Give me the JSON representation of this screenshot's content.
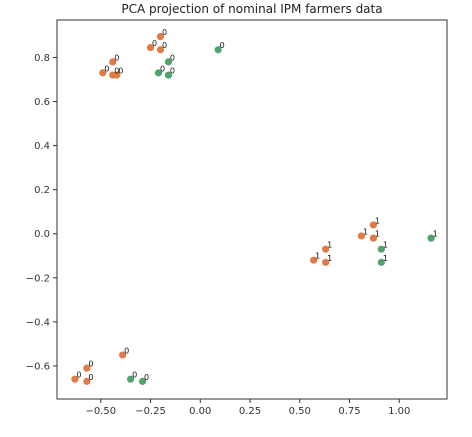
{
  "chart_data": {
    "type": "scatter",
    "title": "PCA projection of nominal IPM farmers data",
    "xlabel": "",
    "ylabel": "",
    "xlim": [
      -0.72,
      1.24
    ],
    "ylim": [
      -0.75,
      0.97
    ],
    "xticks": [
      -0.5,
      -0.25,
      0.0,
      0.25,
      0.5,
      0.75,
      1.0
    ],
    "xtick_labels": [
      "−0.50",
      "−0.25",
      "0.00",
      "0.25",
      "0.50",
      "0.75",
      "1.00"
    ],
    "yticks": [
      -0.6,
      -0.4,
      -0.2,
      0.0,
      0.2,
      0.4,
      0.6,
      0.8
    ],
    "ytick_labels": [
      "−0.6",
      "−0.4",
      "−0.2",
      "0.0",
      "0.2",
      "0.4",
      "0.6",
      "0.8"
    ],
    "grid": false,
    "colors": {
      "orange": "#e07b48",
      "green": "#4fa36b"
    },
    "points": [
      {
        "x": -0.2,
        "y": 0.895,
        "color": "orange",
        "label": "0"
      },
      {
        "x": -0.25,
        "y": 0.845,
        "color": "orange",
        "label": "0"
      },
      {
        "x": -0.2,
        "y": 0.835,
        "color": "orange",
        "label": "0"
      },
      {
        "x": 0.09,
        "y": 0.835,
        "color": "green",
        "label": "0"
      },
      {
        "x": -0.44,
        "y": 0.78,
        "color": "orange",
        "label": "0"
      },
      {
        "x": -0.16,
        "y": 0.78,
        "color": "green",
        "label": "0"
      },
      {
        "x": -0.49,
        "y": 0.73,
        "color": "orange",
        "label": "0"
      },
      {
        "x": -0.44,
        "y": 0.72,
        "color": "orange",
        "label": "0"
      },
      {
        "x": -0.42,
        "y": 0.72,
        "color": "orange",
        "label": "0"
      },
      {
        "x": -0.21,
        "y": 0.73,
        "color": "green",
        "label": "0"
      },
      {
        "x": -0.16,
        "y": 0.72,
        "color": "green",
        "label": "0"
      },
      {
        "x": 0.87,
        "y": 0.04,
        "color": "orange",
        "label": "1"
      },
      {
        "x": 0.81,
        "y": -0.01,
        "color": "orange",
        "label": "1"
      },
      {
        "x": 0.87,
        "y": -0.02,
        "color": "orange",
        "label": "1"
      },
      {
        "x": 1.16,
        "y": -0.02,
        "color": "green",
        "label": "1"
      },
      {
        "x": 0.63,
        "y": -0.07,
        "color": "orange",
        "label": "1"
      },
      {
        "x": 0.91,
        "y": -0.07,
        "color": "green",
        "label": "1"
      },
      {
        "x": 0.57,
        "y": -0.12,
        "color": "orange",
        "label": "1"
      },
      {
        "x": 0.63,
        "y": -0.13,
        "color": "orange",
        "label": "1"
      },
      {
        "x": 0.91,
        "y": -0.13,
        "color": "green",
        "label": "1"
      },
      {
        "x": -0.39,
        "y": -0.55,
        "color": "orange",
        "label": "0"
      },
      {
        "x": -0.57,
        "y": -0.61,
        "color": "orange",
        "label": "0"
      },
      {
        "x": -0.63,
        "y": -0.66,
        "color": "orange",
        "label": "0"
      },
      {
        "x": -0.57,
        "y": -0.67,
        "color": "orange",
        "label": "0"
      },
      {
        "x": -0.35,
        "y": -0.66,
        "color": "green",
        "label": "0"
      },
      {
        "x": -0.29,
        "y": -0.67,
        "color": "green",
        "label": "0"
      }
    ]
  }
}
